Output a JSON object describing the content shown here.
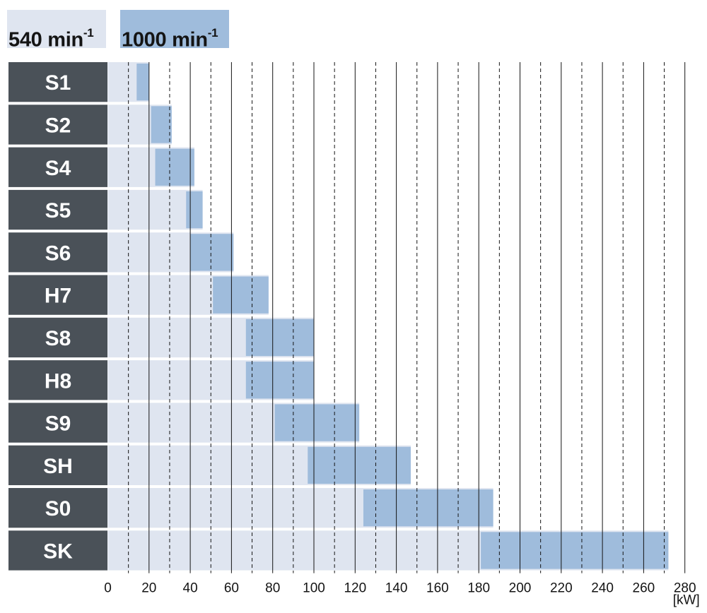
{
  "legend": [
    {
      "label": "540 min",
      "sup": "-1",
      "color": "#dfe5f0"
    },
    {
      "label": "1000 min",
      "sup": "-1",
      "color": "#9fbcdc"
    }
  ],
  "unit_label": "[kW]",
  "chart_data": {
    "type": "bar",
    "orientation": "horizontal",
    "categories": [
      "S1",
      "S2",
      "S4",
      "S5",
      "S6",
      "H7",
      "S8",
      "H8",
      "S9",
      "SH",
      "S0",
      "SK"
    ],
    "series": [
      {
        "name": "540 min-1",
        "values": [
          20,
          31,
          42,
          46,
          61,
          78,
          100,
          100,
          122,
          147,
          187,
          272
        ]
      },
      {
        "name": "1000 min-1",
        "ranges": [
          [
            14,
            20
          ],
          [
            21,
            31
          ],
          [
            23,
            42
          ],
          [
            38,
            46
          ],
          [
            40,
            61
          ],
          [
            51,
            78
          ],
          [
            67,
            100
          ],
          [
            67,
            100
          ],
          [
            81,
            122
          ],
          [
            97,
            147
          ],
          [
            124,
            187
          ],
          [
            181,
            272
          ]
        ]
      }
    ],
    "xlim": [
      0,
      280
    ],
    "xticks": [
      0,
      20,
      40,
      60,
      80,
      100,
      120,
      140,
      160,
      180,
      200,
      220,
      240,
      260,
      280
    ],
    "xlabel": "[kW]",
    "colors": {
      "label_bg": "#4a5158",
      "bar_light": "#dfe5f0",
      "bar_dark": "#9fbcdc",
      "grid": "#141414"
    }
  }
}
